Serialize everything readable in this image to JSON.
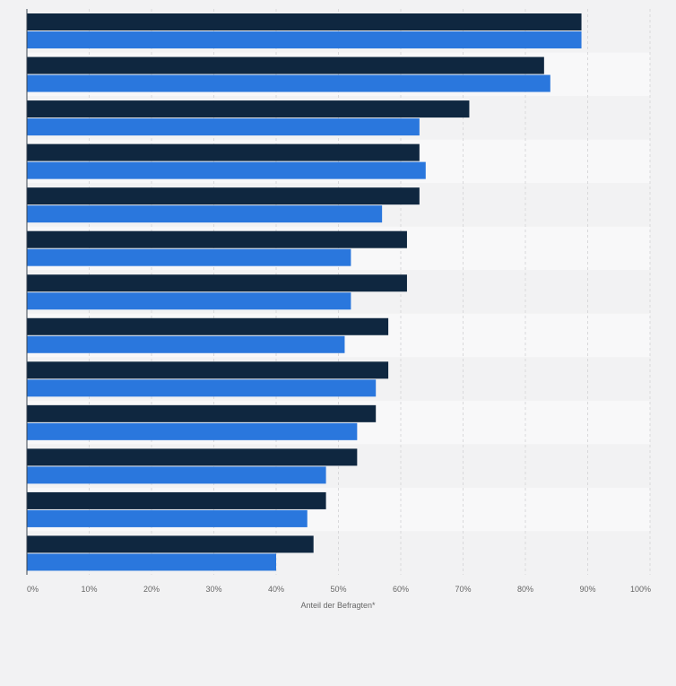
{
  "chart_data": {
    "type": "bar",
    "orientation": "horizontal",
    "title": "",
    "xlabel": "Anteil der Befragten*",
    "ylabel": "",
    "xlim": [
      0,
      100
    ],
    "x_ticks": [
      "0%",
      "10%",
      "20%",
      "30%",
      "40%",
      "50%",
      "60%",
      "70%",
      "80%",
      "90%",
      "100%"
    ],
    "grid": true,
    "legend": "none",
    "categories": [
      "",
      "",
      "",
      "",
      "",
      "",
      "",
      "",
      "",
      "",
      "",
      "",
      ""
    ],
    "series": [
      {
        "color": "#0f2740",
        "values": [
          89,
          83,
          71,
          63,
          63,
          61,
          61,
          58,
          58,
          56,
          53,
          48,
          46
        ]
      },
      {
        "color": "#2a77dd",
        "values": [
          89,
          84,
          63,
          64,
          57,
          52,
          52,
          51,
          56,
          53,
          48,
          45,
          40
        ]
      }
    ]
  }
}
